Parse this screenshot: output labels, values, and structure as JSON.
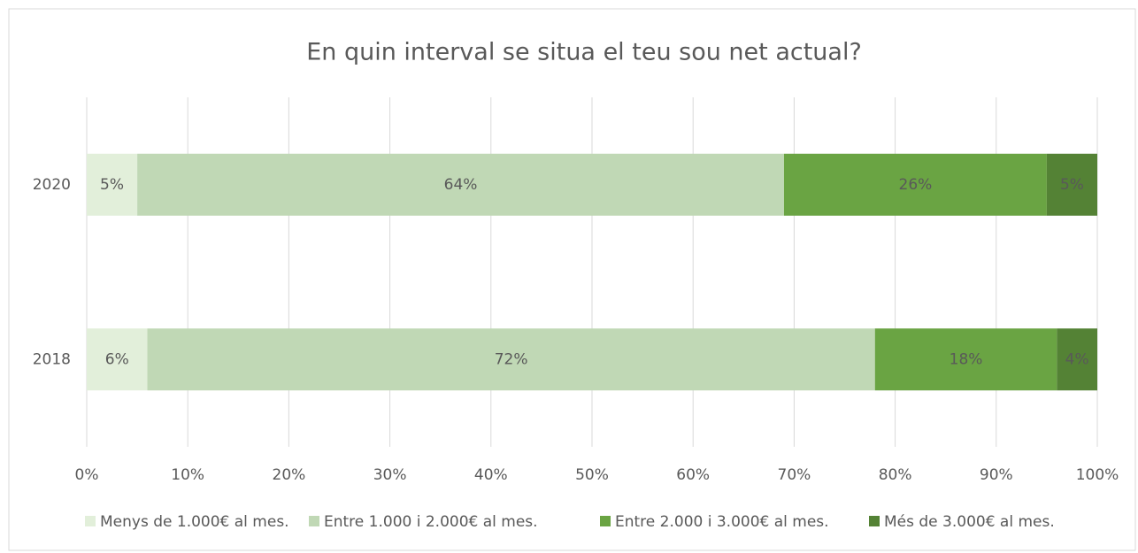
{
  "chart_data": {
    "type": "stacked-bar-horizontal",
    "title": "En quin interval se situa el teu sou net actual?",
    "categories": [
      "2020",
      "2018"
    ],
    "series": [
      {
        "name": "Menys de 1.000€ al mes.",
        "color": "#e2efda",
        "values": [
          5,
          6
        ],
        "value_labels": [
          "5%",
          "6%"
        ]
      },
      {
        "name": "Entre 1.000 i 2.000€ al mes.",
        "color": "#c0d8b5",
        "values": [
          64,
          72
        ],
        "value_labels": [
          "64%",
          "72%"
        ]
      },
      {
        "name": "Entre 2.000 i 3.000€ al mes.",
        "color": "#6aa443",
        "values": [
          26,
          18
        ],
        "value_labels": [
          "26%",
          "18%"
        ]
      },
      {
        "name": "Més de 3.000€ al mes.",
        "color": "#548235",
        "values": [
          5,
          4
        ],
        "value_labels": [
          "5%",
          "4%"
        ]
      }
    ],
    "xlim": [
      0,
      100
    ],
    "xticks": [
      {
        "value": 0,
        "label": "0%"
      },
      {
        "value": 10,
        "label": "10%"
      },
      {
        "value": 20,
        "label": "20%"
      },
      {
        "value": 30,
        "label": "30%"
      },
      {
        "value": 40,
        "label": "40%"
      },
      {
        "value": 50,
        "label": "50%"
      },
      {
        "value": 60,
        "label": "60%"
      },
      {
        "value": 70,
        "label": "70%"
      },
      {
        "value": 80,
        "label": "80%"
      },
      {
        "value": 90,
        "label": "90%"
      },
      {
        "value": 100,
        "label": "100%"
      }
    ],
    "grid": true,
    "legend": "bottom"
  }
}
